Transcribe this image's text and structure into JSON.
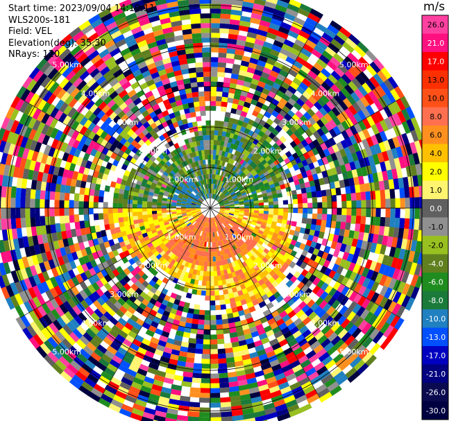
{
  "header": {
    "start_time": "Start time: 2023/09/04 14:10:11",
    "instrument": "WLS200s-181",
    "field": "Field: VEL",
    "elevation": "Elevation(deg): 35.30",
    "nrays": "NRays: 120"
  },
  "colorbar": {
    "unit": "m/s",
    "ticks": [
      "26.0",
      "21.0",
      "17.0",
      "13.0",
      "10.0",
      "8.0",
      "6.0",
      "4.0",
      "2.0",
      "1.0",
      "0.0",
      "-1.0",
      "-2.0",
      "-4.0",
      "-6.0",
      "-8.0",
      "-10.0",
      "-13.0",
      "-17.0",
      "-21.0",
      "-26.0",
      "-30.0"
    ],
    "colors": [
      "#ff40a0",
      "#ff1080",
      "#ff0000",
      "#ff3000",
      "#ff5018",
      "#ff7050",
      "#ff9020",
      "#ffc000",
      "#ffff00",
      "#fff570",
      "#606060",
      "#909090",
      "#98c020",
      "#608020",
      "#1f8c1f",
      "#1a7a3a",
      "#2080c0",
      "#0050ff",
      "#0000c0",
      "#000080",
      "#0a0a50",
      "#000040"
    ]
  },
  "chart_data": {
    "type": "ppi",
    "field": "VEL",
    "units": "m/s",
    "nrays": 120,
    "ring_labels": [
      "1.00km",
      "2.00km",
      "3.00km",
      "4.00km",
      "5.00km"
    ],
    "ring_km": [
      1,
      2,
      3,
      4,
      5
    ],
    "max_range_km": 5.4,
    "clean_range_km": 2.2,
    "description_bins": [
      {
        "sector": "north",
        "range_km": [
          0.3,
          1.8
        ],
        "velocity_ms": [
          -6,
          -1
        ]
      },
      {
        "sector": "south",
        "range_km": [
          0.3,
          2.0
        ],
        "velocity_ms": [
          2,
          8
        ]
      }
    ]
  }
}
